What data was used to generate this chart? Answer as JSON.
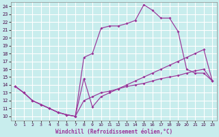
{
  "background_color": "#c8eded",
  "grid_color": "#ffffff",
  "line_color": "#993399",
  "xlabel": "Windchill (Refroidissement éolien,°C)",
  "xlim": [
    0,
    23
  ],
  "ylim": [
    10,
    24
  ],
  "xticks": [
    0,
    1,
    2,
    3,
    4,
    5,
    6,
    7,
    8,
    9,
    10,
    11,
    12,
    13,
    14,
    15,
    16,
    17,
    18,
    19,
    20,
    21,
    22,
    23
  ],
  "yticks": [
    10,
    11,
    12,
    13,
    14,
    15,
    16,
    17,
    18,
    19,
    20,
    21,
    22,
    23,
    24
  ],
  "line1_x": [
    0,
    1,
    2,
    3,
    4,
    5,
    6,
    7,
    8,
    9,
    10,
    11,
    12,
    13,
    14,
    15,
    16,
    17,
    18,
    19,
    20,
    21,
    22,
    23
  ],
  "line1_y": [
    13.8,
    13.0,
    12.0,
    11.5,
    11.0,
    10.5,
    10.2,
    10.0,
    14.8,
    11.2,
    12.5,
    13.0,
    13.5,
    14.0,
    14.5,
    15.0,
    15.5,
    16.0,
    16.5,
    17.0,
    17.5,
    18.0,
    18.5,
    14.5
  ],
  "line2_x": [
    0,
    1,
    2,
    3,
    4,
    5,
    6,
    7,
    8,
    9,
    10,
    11,
    12,
    13,
    14,
    15,
    16,
    17,
    18,
    19,
    20,
    21,
    22,
    23
  ],
  "line2_y": [
    13.8,
    13.0,
    12.0,
    11.5,
    11.0,
    10.5,
    10.2,
    10.0,
    17.5,
    18.0,
    21.2,
    21.5,
    21.5,
    21.8,
    22.2,
    24.2,
    23.5,
    22.5,
    22.5,
    20.8,
    16.0,
    15.5,
    15.5,
    14.5
  ],
  "line3_x": [
    0,
    1,
    2,
    3,
    4,
    5,
    6,
    7,
    8,
    9,
    10,
    11,
    12,
    13,
    14,
    15,
    16,
    17,
    18,
    19,
    20,
    21,
    22,
    23
  ],
  "line3_y": [
    13.8,
    13.0,
    12.0,
    11.5,
    11.0,
    10.5,
    10.2,
    10.0,
    12.0,
    12.5,
    13.0,
    13.2,
    13.5,
    13.8,
    14.0,
    14.2,
    14.5,
    14.8,
    15.0,
    15.2,
    15.5,
    15.8,
    16.0,
    14.5
  ]
}
